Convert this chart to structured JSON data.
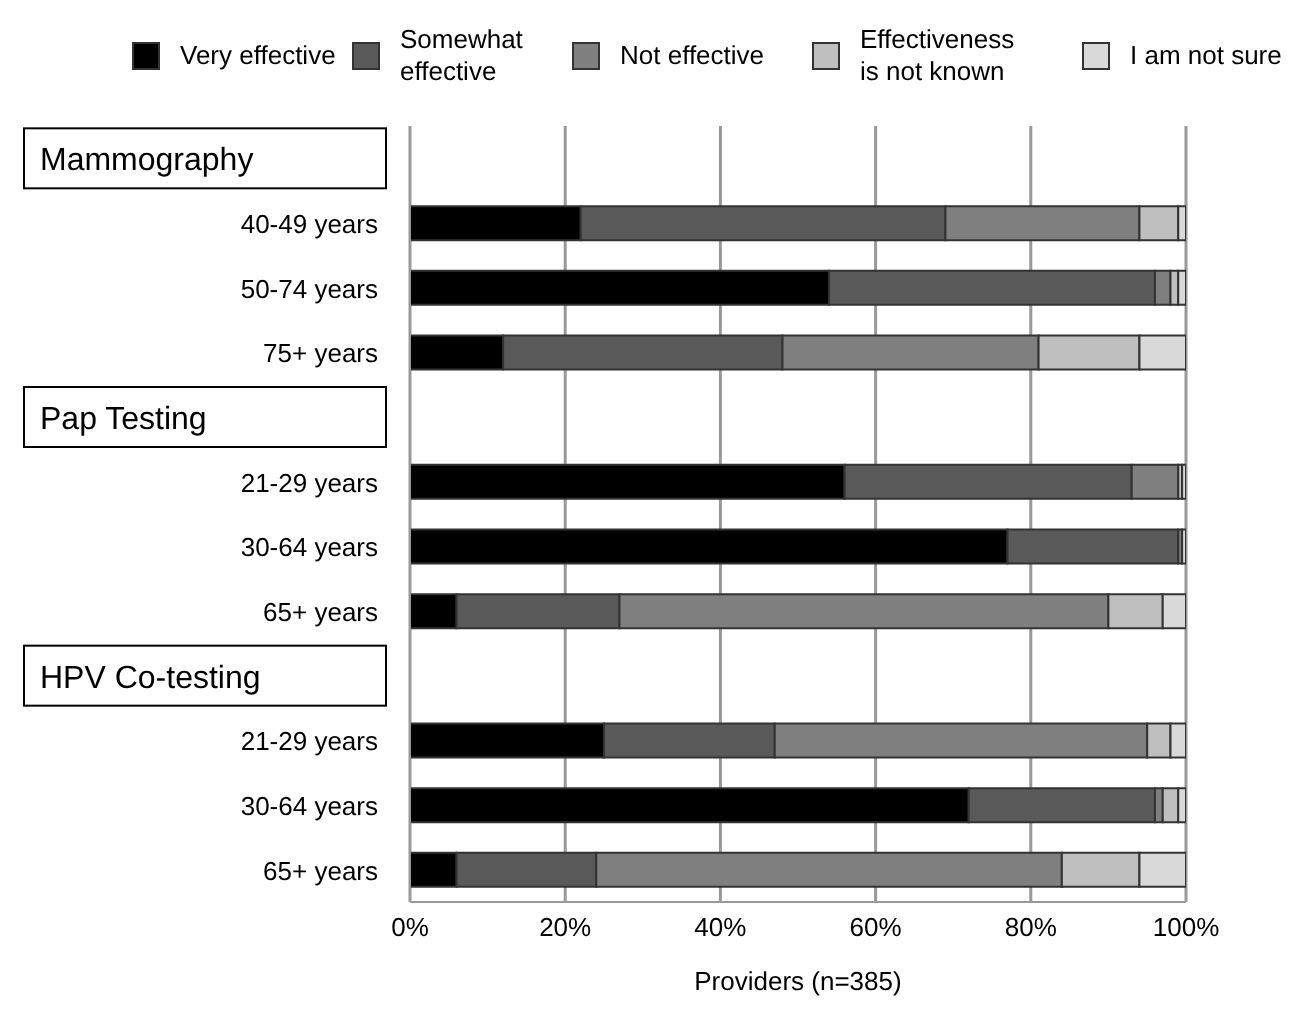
{
  "chart_data": {
    "type": "bar",
    "orientation": "horizontal",
    "stacked": true,
    "xlabel": "Providers (n=385)",
    "categories": [
      null,
      "40-49 years",
      "50-74 years",
      "75+ years",
      null,
      "21-29 years",
      "30-64 years",
      "65+ years",
      null,
      "21-29 years",
      "30-64 years",
      "65+ years"
    ],
    "annotations": [
      "Mammography",
      "Pap Testing",
      "HPV Co-testing"
    ],
    "series": [
      {
        "name": "Very effective",
        "color": "#000000",
        "values": [
          null,
          22,
          54,
          12,
          null,
          56,
          77,
          6,
          null,
          25,
          72,
          6
        ]
      },
      {
        "name": "Somewhat effective",
        "color": "#595959",
        "values": [
          null,
          47,
          42,
          36,
          null,
          37,
          22,
          21,
          null,
          22,
          24,
          18
        ]
      },
      {
        "name": "Not effective",
        "color": "#7f7f7f",
        "values": [
          null,
          25,
          2,
          33,
          null,
          6,
          0.5,
          63,
          null,
          48,
          1,
          60
        ]
      },
      {
        "name": "Effectiveness is not known",
        "color": "#bfbfbf",
        "values": [
          null,
          5,
          1,
          13,
          null,
          0.5,
          0,
          7,
          null,
          3,
          2,
          10
        ]
      },
      {
        "name": "I am not sure",
        "color": "#d9d9d9",
        "values": [
          null,
          1,
          1,
          6,
          null,
          0.5,
          0.5,
          3,
          null,
          2,
          1,
          6
        ]
      }
    ],
    "xlim": [
      0,
      100
    ],
    "xticks": [
      {
        "value": 0,
        "label": "0%"
      },
      {
        "value": 20,
        "label": "20%"
      },
      {
        "value": 40,
        "label": "40%"
      },
      {
        "value": 60,
        "label": "60%"
      },
      {
        "value": 80,
        "label": "80%"
      },
      {
        "value": 100,
        "label": "100%"
      }
    ],
    "grid": "x",
    "legend": "top"
  }
}
